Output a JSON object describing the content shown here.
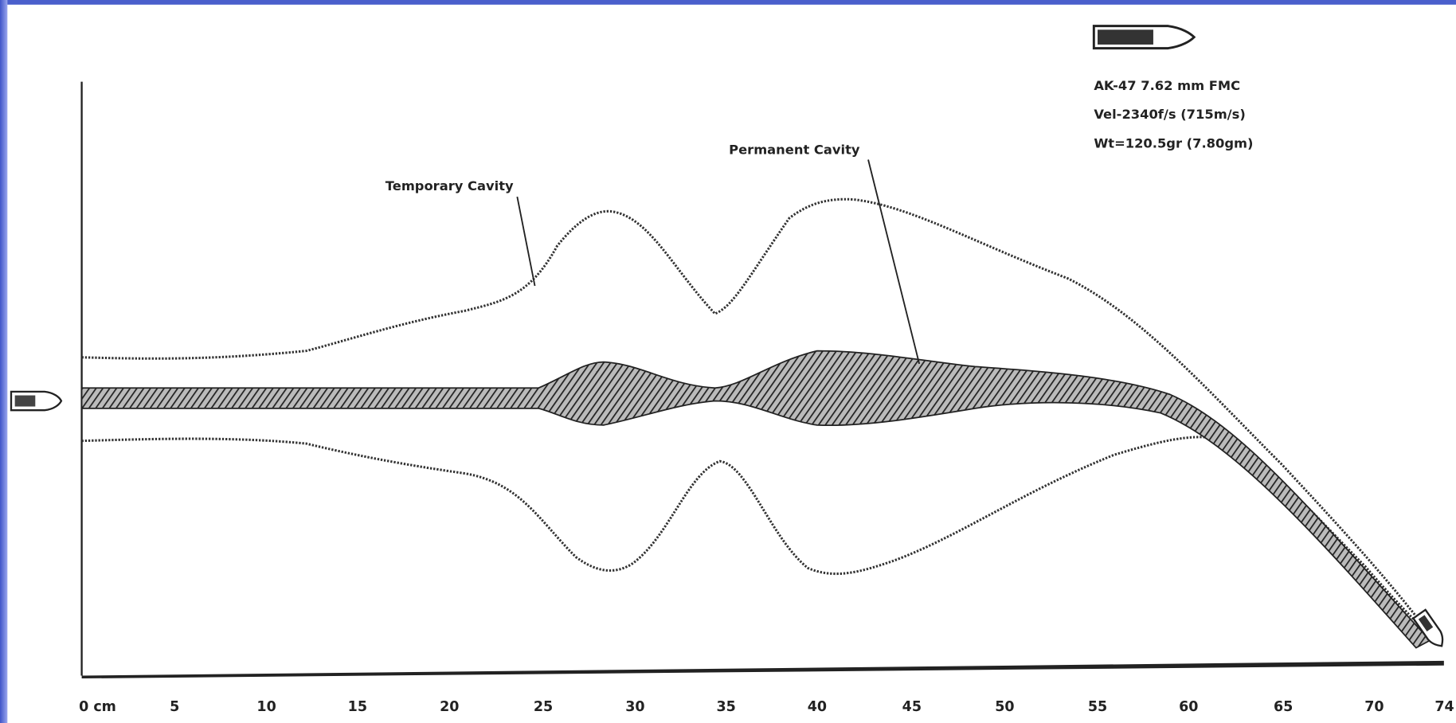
{
  "labels": {
    "temporary_cavity": "Temporary Cavity",
    "permanent_cavity": "Permanent Cavity"
  },
  "bullet_info": [
    "AK-47  7.62 mm  FMC",
    "Vel-2340f/s (715m/s)",
    "Wt=120.5gr (7.80gm)"
  ],
  "axis": {
    "ticks": [
      "0 cm",
      "5",
      "10",
      "15",
      "20",
      "25",
      "30",
      "35",
      "40",
      "45",
      "50",
      "55",
      "60",
      "65",
      "70",
      "74"
    ]
  }
}
